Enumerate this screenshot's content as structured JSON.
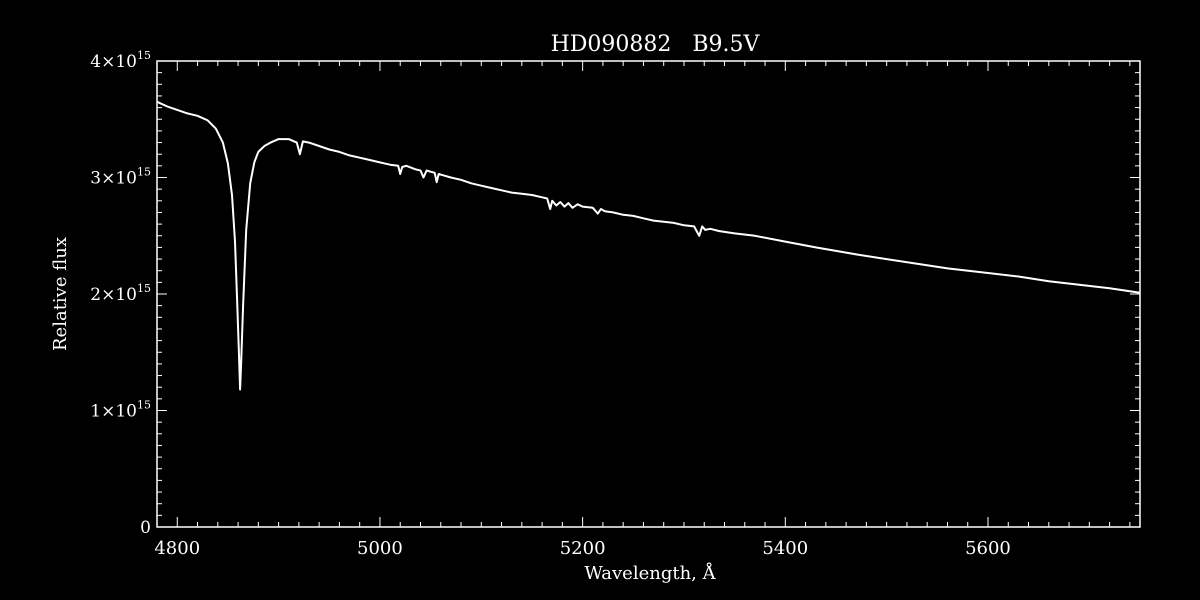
{
  "chart_data": {
    "type": "line",
    "title": "HD090882   B9.5V",
    "xlabel": "Wavelength, Å",
    "ylabel": "Relative flux",
    "xlim": [
      4780,
      5750
    ],
    "ylim": [
      0,
      4000000000000000.0
    ],
    "x_ticks": [
      {
        "value": 4800,
        "label": "4800"
      },
      {
        "value": 5000,
        "label": "5000"
      },
      {
        "value": 5200,
        "label": "5200"
      },
      {
        "value": 5400,
        "label": "5400"
      },
      {
        "value": 5600,
        "label": "5600"
      }
    ],
    "y_ticks": [
      {
        "value": 0,
        "mantissa": "0",
        "exponent": ""
      },
      {
        "value": 1000000000000000.0,
        "mantissa": "1×10",
        "exponent": "15"
      },
      {
        "value": 2000000000000000.0,
        "mantissa": "2×10",
        "exponent": "15"
      },
      {
        "value": 3000000000000000.0,
        "mantissa": "3×10",
        "exponent": "15"
      },
      {
        "value": 4000000000000000.0,
        "mantissa": "4×10",
        "exponent": "15"
      }
    ],
    "grid": false,
    "colors": {
      "background": "#000000",
      "line": "#ffffff",
      "axes": "#ffffff"
    },
    "series": [
      {
        "x": [
          4780,
          4790,
          4800,
          4810,
          4820,
          4830,
          4838,
          4845,
          4850,
          4854,
          4857,
          4859,
          4861,
          4862,
          4863,
          4865,
          4868,
          4872,
          4876,
          4880,
          4886,
          4892,
          4900,
          4910,
          4918,
          4921,
          4924,
          4930,
          4940,
          4950,
          4960,
          4970,
          4980,
          4990,
          5000,
          5010,
          5018,
          5020,
          5022,
          5026,
          5035,
          5040,
          5043,
          5046,
          5050,
          5054,
          5056,
          5058,
          5062,
          5070,
          5080,
          5090,
          5100,
          5110,
          5120,
          5130,
          5140,
          5150,
          5160,
          5165,
          5168,
          5170,
          5174,
          5178,
          5182,
          5186,
          5190,
          5195,
          5200,
          5210,
          5215,
          5218,
          5222,
          5230,
          5240,
          5250,
          5260,
          5270,
          5280,
          5290,
          5300,
          5310,
          5315,
          5318,
          5321,
          5326,
          5335,
          5350,
          5370,
          5400,
          5430,
          5450,
          5470,
          5500,
          5530,
          5560,
          5600,
          5630,
          5660,
          5690,
          5720,
          5750
        ],
        "y": [
          3650000000000000.0,
          3610000000000000.0,
          3580000000000000.0,
          3550000000000000.0,
          3530000000000000.0,
          3490000000000000.0,
          3420000000000000.0,
          3300000000000000.0,
          3120000000000000.0,
          2850000000000000.0,
          2450000000000000.0,
          1950000000000000.0,
          1450000000000000.0,
          1180000000000000.0,
          1400000000000000.0,
          1900000000000000.0,
          2550000000000000.0,
          2950000000000000.0,
          3130000000000000.0,
          3220000000000000.0,
          3270000000000000.0,
          3300000000000000.0,
          3330000000000000.0,
          3330000000000000.0,
          3300000000000000.0,
          3200000000000000.0,
          3310000000000000.0,
          3300000000000000.0,
          3270000000000000.0,
          3240000000000000.0,
          3220000000000000.0,
          3190000000000000.0,
          3170000000000000.0,
          3150000000000000.0,
          3130000000000000.0,
          3110000000000000.0,
          3100000000000000.0,
          3030000000000000.0,
          3090000000000000.0,
          3100000000000000.0,
          3070000000000000.0,
          3060000000000000.0,
          3000000000000000.0,
          3060000000000000.0,
          3050000000000000.0,
          3040000000000000.0,
          2960000000000000.0,
          3030000000000000.0,
          3020000000000000.0,
          3000000000000000.0,
          2980000000000000.0,
          2950000000000000.0,
          2930000000000000.0,
          2910000000000000.0,
          2890000000000000.0,
          2870000000000000.0,
          2860000000000000.0,
          2850000000000000.0,
          2830000000000000.0,
          2820000000000000.0,
          2730000000000000.0,
          2800000000000000.0,
          2760000000000000.0,
          2790000000000000.0,
          2750000000000000.0,
          2780000000000000.0,
          2740000000000000.0,
          2770000000000000.0,
          2750000000000000.0,
          2740000000000000.0,
          2690000000000000.0,
          2730000000000000.0,
          2710000000000000.0,
          2700000000000000.0,
          2680000000000000.0,
          2670000000000000.0,
          2650000000000000.0,
          2630000000000000.0,
          2620000000000000.0,
          2610000000000000.0,
          2590000000000000.0,
          2580000000000000.0,
          2500000000000000.0,
          2580000000000000.0,
          2550000000000000.0,
          2560000000000000.0,
          2540000000000000.0,
          2520000000000000.0,
          2500000000000000.0,
          2450000000000000.0,
          2400000000000000.0,
          2370000000000000.0,
          2340000000000000.0,
          2300000000000000.0,
          2260000000000000.0,
          2220000000000000.0,
          2180000000000000.0,
          2150000000000000.0,
          2110000000000000.0,
          2080000000000000.0,
          2050000000000000.0,
          2010000000000000.0
        ]
      }
    ]
  }
}
